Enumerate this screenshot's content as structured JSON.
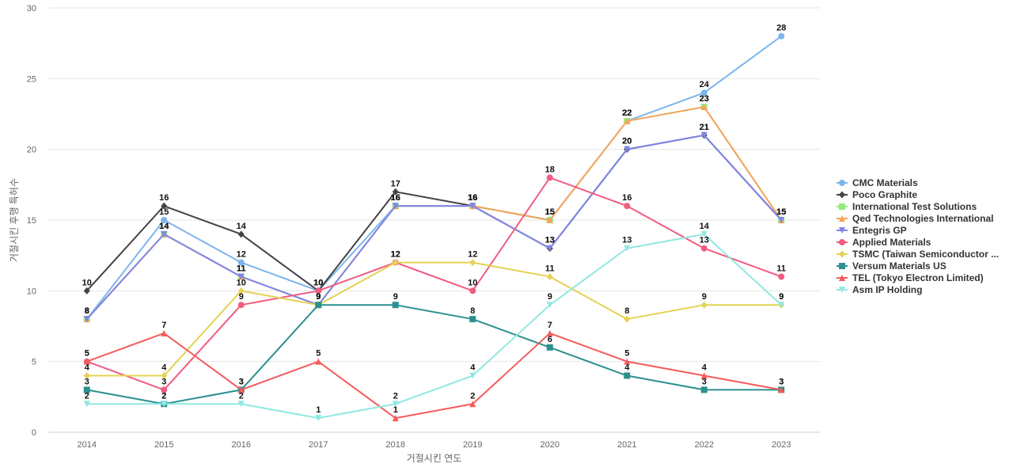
{
  "chart_data": {
    "type": "line",
    "title": "",
    "xlabel": "거절시킨 연도",
    "ylabel": "거절시킨 후행 특허수",
    "x": [
      "2014",
      "2015",
      "2016",
      "2017",
      "2018",
      "2019",
      "2020",
      "2021",
      "2022",
      "2023"
    ],
    "ylim": [
      0,
      30
    ],
    "yticks": [
      0,
      5,
      10,
      15,
      20,
      25,
      30
    ],
    "grid": true,
    "legend_position": "right",
    "series": [
      {
        "name": "CMC Materials",
        "color": "#7cb5ec",
        "marker": "circle",
        "values": [
          8,
          15,
          12,
          10,
          16,
          16,
          15,
          22,
          24,
          28
        ]
      },
      {
        "name": "Poco Graphite",
        "color": "#434348",
        "marker": "diamond",
        "values": [
          10,
          16,
          14,
          10,
          17,
          16,
          13,
          20,
          21,
          15
        ]
      },
      {
        "name": "International Test Solutions",
        "color": "#90ed7d",
        "marker": "square",
        "values": [
          8,
          14,
          11,
          9,
          16,
          16,
          15,
          22,
          23,
          15
        ]
      },
      {
        "name": "Qed Technologies International",
        "color": "#f7a35c",
        "marker": "triangle",
        "values": [
          8,
          14,
          11,
          9,
          16,
          16,
          15,
          22,
          23,
          15
        ]
      },
      {
        "name": "Entegris GP",
        "color": "#8085e9",
        "marker": "triangle-down",
        "values": [
          8,
          14,
          11,
          9,
          16,
          16,
          13,
          20,
          21,
          15
        ]
      },
      {
        "name": "Applied Materials",
        "color": "#f15c80",
        "marker": "circle",
        "values": [
          5,
          3,
          9,
          10,
          12,
          10,
          18,
          16,
          13,
          11
        ]
      },
      {
        "name": "TSMC (Taiwan Semiconductor ...",
        "color": "#e4d354",
        "marker": "diamond",
        "values": [
          4,
          4,
          10,
          9,
          12,
          12,
          11,
          8,
          9,
          9
        ]
      },
      {
        "name": "Versum Materials US",
        "color": "#2b908f",
        "marker": "square",
        "values": [
          3,
          2,
          3,
          9,
          9,
          8,
          6,
          4,
          3,
          3
        ]
      },
      {
        "name": "TEL (Tokyo Electron Limited)",
        "color": "#f45b5b",
        "marker": "triangle",
        "values": [
          5,
          7,
          3,
          5,
          1,
          2,
          7,
          5,
          4,
          3
        ]
      },
      {
        "name": "Asm IP Holding",
        "color": "#91e8e1",
        "marker": "triangle-down",
        "values": [
          2,
          2,
          2,
          1,
          2,
          4,
          9,
          13,
          14,
          9
        ]
      }
    ]
  }
}
